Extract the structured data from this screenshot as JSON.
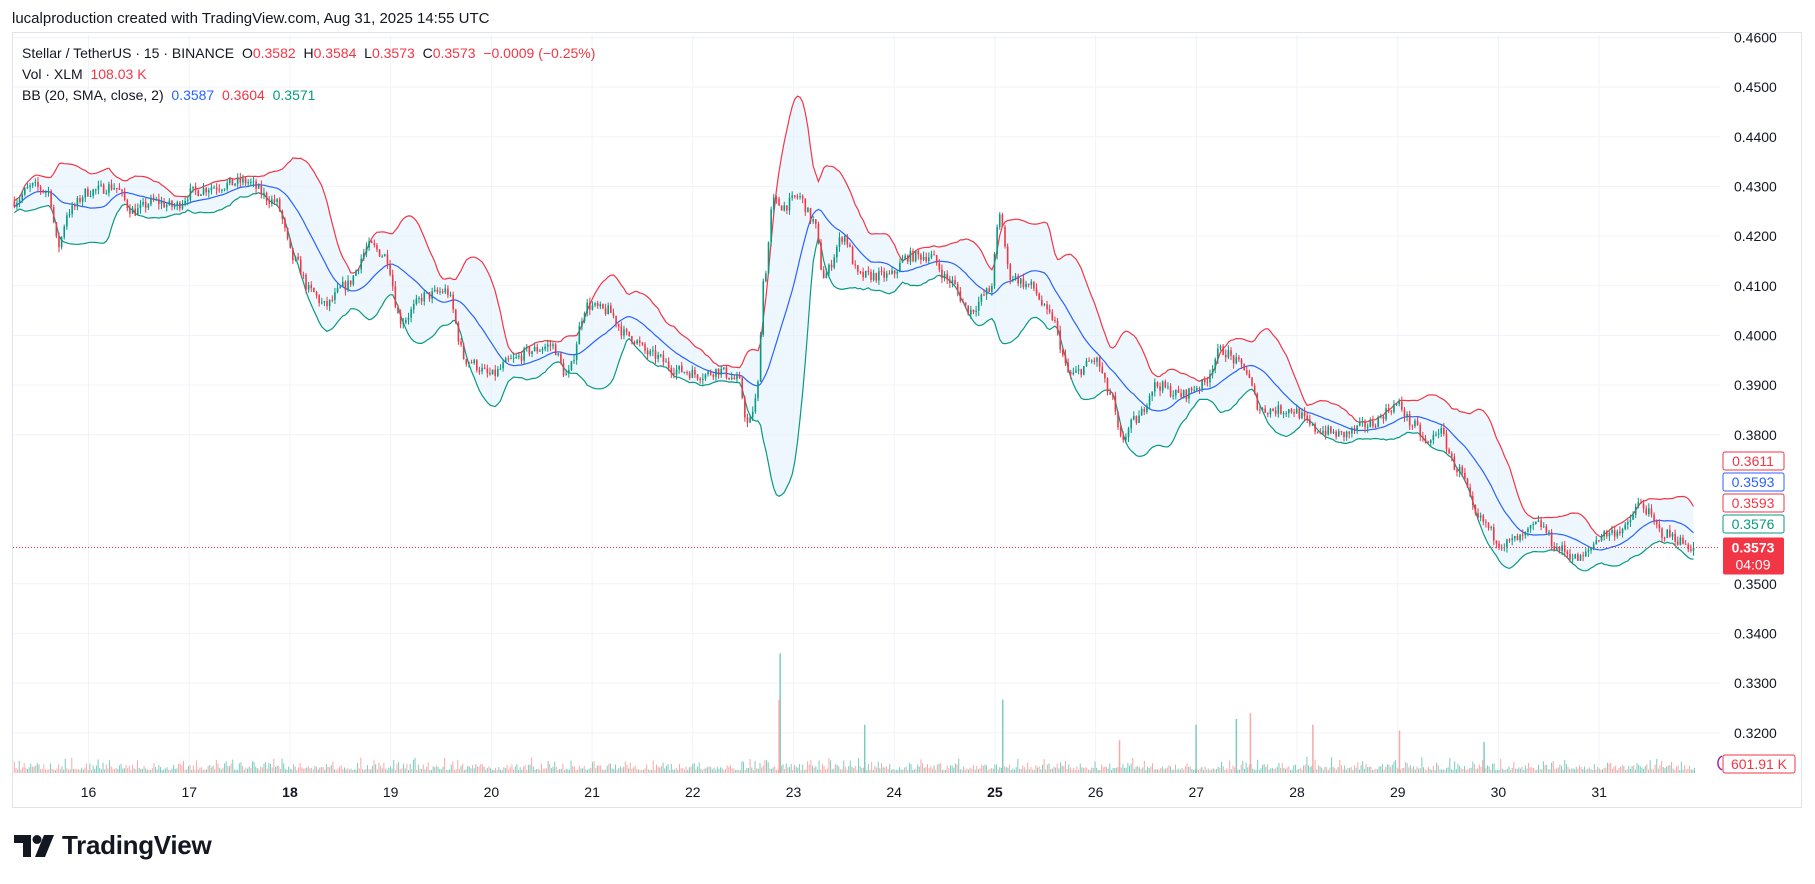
{
  "attribution": "lucalproduction created with TradingView.com, Aug 31, 2025 14:55 UTC",
  "legend": {
    "symbol": "Stellar / TetherUS · 15 · BINANCE",
    "o_label": "O",
    "o": "0.3582",
    "h_label": "H",
    "h": "0.3584",
    "l_label": "L",
    "l": "0.3573",
    "c_label": "C",
    "c": "0.3573",
    "change": "−0.0009 (−0.25%)",
    "vol_label": "Vol · XLM",
    "vol": "108.03 K",
    "bb_label": "BB (20, SMA, close, 2)",
    "bb_basis": "0.3587",
    "bb_upper": "0.3604",
    "bb_lower": "0.3571"
  },
  "colors": {
    "up": "#089981",
    "down": "#f23645",
    "basis": "#2962ff",
    "upper": "#f23645",
    "lower": "#089981",
    "band_fill": "#e3f2fd",
    "vol_up": "#7fcbbf",
    "vol_down": "#f7a9a7",
    "grid": "#f0f3fa"
  },
  "price_badges": [
    {
      "label": "0.3611",
      "kind": "upper-outline"
    },
    {
      "label": "0.3593",
      "kind": "basis-outline"
    },
    {
      "label": "0.3593",
      "kind": "upper-outline"
    },
    {
      "label": "0.3576",
      "kind": "lower-outline"
    },
    {
      "label": "0.3573",
      "sub": "04:09",
      "kind": "last-price"
    }
  ],
  "volume_badge": "601.91 K",
  "branding": "TradingView",
  "chart_data": {
    "type": "candlestick",
    "title": "Stellar / TetherUS · 15 · BINANCE",
    "y_ticks": [
      "0.4600",
      "0.4500",
      "0.4400",
      "0.4300",
      "0.4200",
      "0.4100",
      "0.4000",
      "0.3900",
      "0.3800",
      "0.3500",
      "0.3400",
      "0.3300",
      "0.3200"
    ],
    "ylim": [
      0.3115,
      0.4605
    ],
    "x_ticks": [
      {
        "label": "16",
        "x": 15.75,
        "bold": false
      },
      {
        "label": "17",
        "x": 16.75,
        "bold": false
      },
      {
        "label": "18",
        "x": 17.75,
        "bold": true
      },
      {
        "label": "19",
        "x": 18.75,
        "bold": false
      },
      {
        "label": "20",
        "x": 19.75,
        "bold": false
      },
      {
        "label": "21",
        "x": 20.75,
        "bold": false
      },
      {
        "label": "22",
        "x": 21.75,
        "bold": false
      },
      {
        "label": "23",
        "x": 22.75,
        "bold": false
      },
      {
        "label": "24",
        "x": 23.75,
        "bold": false
      },
      {
        "label": "25",
        "x": 24.75,
        "bold": true
      },
      {
        "label": "26",
        "x": 25.75,
        "bold": false
      },
      {
        "label": "27",
        "x": 26.75,
        "bold": false
      },
      {
        "label": "28",
        "x": 27.75,
        "bold": false
      },
      {
        "label": "29",
        "x": 28.75,
        "bold": false
      },
      {
        "label": "30",
        "x": 29.75,
        "bold": false
      },
      {
        "label": "31",
        "x": 30.75,
        "bold": false
      }
    ],
    "xlim": [
      15.0,
      31.95
    ],
    "price_key": [
      [
        15.0,
        0.427
      ],
      [
        15.2,
        0.43
      ],
      [
        15.35,
        0.429
      ],
      [
        15.45,
        0.418
      ],
      [
        15.55,
        0.425
      ],
      [
        15.75,
        0.429
      ],
      [
        16.0,
        0.43
      ],
      [
        16.2,
        0.425
      ],
      [
        16.4,
        0.427
      ],
      [
        16.6,
        0.426
      ],
      [
        16.8,
        0.429
      ],
      [
        17.0,
        0.43
      ],
      [
        17.3,
        0.431
      ],
      [
        17.6,
        0.427
      ],
      [
        17.8,
        0.415
      ],
      [
        17.95,
        0.409
      ],
      [
        18.1,
        0.406
      ],
      [
        18.3,
        0.41
      ],
      [
        18.55,
        0.418
      ],
      [
        18.7,
        0.416
      ],
      [
        18.85,
        0.403
      ],
      [
        19.1,
        0.408
      ],
      [
        19.3,
        0.409
      ],
      [
        19.5,
        0.395
      ],
      [
        19.75,
        0.392
      ],
      [
        19.95,
        0.395
      ],
      [
        20.15,
        0.397
      ],
      [
        20.35,
        0.398
      ],
      [
        20.5,
        0.392
      ],
      [
        20.7,
        0.406
      ],
      [
        20.9,
        0.405
      ],
      [
        21.1,
        0.4
      ],
      [
        21.35,
        0.396
      ],
      [
        21.6,
        0.393
      ],
      [
        21.85,
        0.392
      ],
      [
        22.0,
        0.393
      ],
      [
        22.2,
        0.391
      ],
      [
        22.3,
        0.382
      ],
      [
        22.38,
        0.387
      ],
      [
        22.46,
        0.412
      ],
      [
        22.55,
        0.427
      ],
      [
        22.65,
        0.426
      ],
      [
        22.8,
        0.428
      ],
      [
        22.95,
        0.423
      ],
      [
        23.05,
        0.412
      ],
      [
        23.25,
        0.42
      ],
      [
        23.4,
        0.412
      ],
      [
        23.7,
        0.412
      ],
      [
        23.9,
        0.416
      ],
      [
        24.1,
        0.416
      ],
      [
        24.3,
        0.411
      ],
      [
        24.5,
        0.405
      ],
      [
        24.7,
        0.409
      ],
      [
        24.8,
        0.424
      ],
      [
        24.9,
        0.412
      ],
      [
        25.1,
        0.41
      ],
      [
        25.3,
        0.404
      ],
      [
        25.5,
        0.392
      ],
      [
        25.75,
        0.395
      ],
      [
        25.9,
        0.388
      ],
      [
        26.0,
        0.379
      ],
      [
        26.15,
        0.383
      ],
      [
        26.35,
        0.39
      ],
      [
        26.6,
        0.388
      ],
      [
        26.8,
        0.39
      ],
      [
        27.0,
        0.397
      ],
      [
        27.2,
        0.394
      ],
      [
        27.4,
        0.385
      ],
      [
        27.7,
        0.385
      ],
      [
        27.95,
        0.381
      ],
      [
        28.2,
        0.38
      ],
      [
        28.45,
        0.382
      ],
      [
        28.75,
        0.386
      ],
      [
        28.9,
        0.382
      ],
      [
        29.05,
        0.378
      ],
      [
        29.15,
        0.381
      ],
      [
        29.35,
        0.373
      ],
      [
        29.55,
        0.363
      ],
      [
        29.8,
        0.358
      ],
      [
        29.95,
        0.359
      ],
      [
        30.15,
        0.362
      ],
      [
        30.35,
        0.357
      ],
      [
        30.55,
        0.355
      ],
      [
        30.8,
        0.36
      ],
      [
        31.0,
        0.361
      ],
      [
        31.15,
        0.366
      ],
      [
        31.4,
        0.36
      ],
      [
        31.7,
        0.3573
      ]
    ],
    "volume_spikes": [
      {
        "x": 22.61,
        "height": 0.62
      },
      {
        "x": 22.6,
        "height": 0.38
      },
      {
        "x": 24.82,
        "height": 0.38
      },
      {
        "x": 27.28,
        "height": 0.31
      },
      {
        "x": 27.14,
        "height": 0.28
      },
      {
        "x": 27.9,
        "height": 0.25
      },
      {
        "x": 26.74,
        "height": 0.25
      },
      {
        "x": 28.76,
        "height": 0.22
      },
      {
        "x": 23.45,
        "height": 0.25
      },
      {
        "x": 25.98,
        "height": 0.17
      },
      {
        "x": 29.6,
        "height": 0.16
      }
    ],
    "last_price": 0.3573
  }
}
